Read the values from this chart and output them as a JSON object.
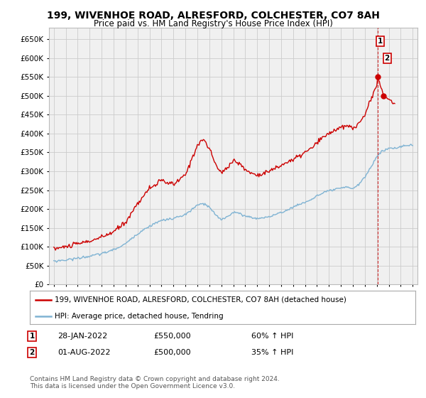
{
  "title": "199, WIVENHOE ROAD, ALRESFORD, COLCHESTER, CO7 8AH",
  "subtitle": "Price paid vs. HM Land Registry's House Price Index (HPI)",
  "legend_line1": "199, WIVENHOE ROAD, ALRESFORD, COLCHESTER, CO7 8AH (detached house)",
  "legend_line2": "HPI: Average price, detached house, Tendring",
  "annotation1_date": "28-JAN-2022",
  "annotation1_price": "£550,000",
  "annotation1_hpi": "60% ↑ HPI",
  "annotation2_date": "01-AUG-2022",
  "annotation2_price": "£500,000",
  "annotation2_hpi": "35% ↑ HPI",
  "footer": "Contains HM Land Registry data © Crown copyright and database right 2024.\nThis data is licensed under the Open Government Licence v3.0.",
  "red_color": "#cc0000",
  "blue_color": "#7fb3d3",
  "grid_color": "#cccccc",
  "bg_color": "#ffffff",
  "plot_bg_color": "#f0f0f0",
  "ylim": [
    0,
    680000
  ],
  "yticks": [
    0,
    50000,
    100000,
    150000,
    200000,
    250000,
    300000,
    350000,
    400000,
    450000,
    500000,
    550000,
    600000,
    650000
  ],
  "xlim_min": 1994.6,
  "xlim_max": 2025.4,
  "sale1_year": 2022.07,
  "sale1_price": 550000,
  "sale2_year": 2022.58,
  "sale2_price": 500000,
  "vline_x": 2022.07
}
